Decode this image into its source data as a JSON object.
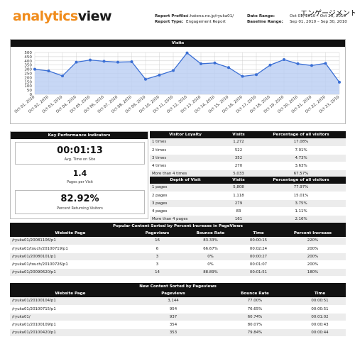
{
  "logo": {
    "part1": "analytics",
    "part2": "view"
  },
  "report": {
    "profile_label": "Report Profile:",
    "profile_value": "d.hatena.ne.jp/ryuka01/",
    "type_label": "Report Type:",
    "type_value": "Engagement Report",
    "date_range_label": "Date Range:",
    "date_range_value": "Oct 01, 2010 – Oct 23, 2010",
    "baseline_label": "Baseline Range:",
    "baseline_value": "Sep 01, 2010 – Sep 30, 2010",
    "title_jp": "エンゲージメント"
  },
  "visits_chart": {
    "title": "Visits",
    "colors": {
      "line": "#3b6fd4",
      "fill": "#b9cdf2",
      "grid": "#c8c8c8"
    }
  },
  "chart_data": {
    "type": "area",
    "title": "Visits",
    "ylim": [
      0,
      500
    ],
    "yticks": [
      0,
      50,
      100,
      150,
      200,
      250,
      300,
      350,
      400,
      450,
      500
    ],
    "grid": true,
    "x": [
      "Oct 01, 2010",
      "Oct 02, 2010",
      "Oct 03, 2010",
      "Oct 04, 2010",
      "Oct 05, 2010",
      "Oct 06, 2010",
      "Oct 07, 2010",
      "Oct 08, 2010",
      "Oct 09, 2010",
      "Oct 10, 2010",
      "Oct 11, 2010",
      "Oct 12, 2010",
      "Oct 13, 2010",
      "Oct 14, 2010",
      "Oct 15, 2010",
      "Oct 16, 2010",
      "Oct 17, 2010",
      "Oct 18, 2010",
      "Oct 19, 2010",
      "Oct 20, 2010",
      "Oct 21, 2010",
      "Oct 22, 2010",
      "Oct 23, 2010"
    ],
    "series": [
      {
        "values": [
          300,
          280,
          220,
          385,
          410,
          395,
          385,
          390,
          180,
          230,
          285,
          495,
          365,
          375,
          320,
          215,
          235,
          350,
          415,
          365,
          345,
          370,
          145
        ]
      }
    ]
  },
  "kpi": {
    "title": "Key Performance Indicators",
    "time_on_site": "00:01:13",
    "time_on_site_label": "Avg. Time on Site",
    "pages_per_visit": "1.4",
    "pages_per_visit_label": "Pages per Visit",
    "returning_pct": "82.92%",
    "returning_label": "Percent Returning Visitors"
  },
  "loyalty": {
    "headers": [
      "Visitor Loyalty",
      "Visits",
      "Percentage of all visitors"
    ],
    "rows": [
      [
        "1 times",
        "1,272",
        "17.08%"
      ],
      [
        "2 times",
        "522",
        "7.01%"
      ],
      [
        "3 times",
        "352",
        "4.73%"
      ],
      [
        "4 times",
        "270",
        "3.63%"
      ],
      [
        "More than 4 times",
        "5,033",
        "67.57%"
      ]
    ]
  },
  "depth": {
    "headers": [
      "Depth of Visit",
      "Visits",
      "Percentage of all visitors"
    ],
    "rows": [
      [
        "1 pages",
        "5,808",
        "77.97%"
      ],
      [
        "2 pages",
        "1,118",
        "15.01%"
      ],
      [
        "3 pages",
        "279",
        "3.75%"
      ],
      [
        "4 pages",
        "83",
        "1.11%"
      ],
      [
        "More than 4 pages",
        "161",
        "2.16%"
      ]
    ]
  },
  "popular": {
    "title": "Popular Content Sorted by Percent Increase in PageViews",
    "headers": [
      "Website Page",
      "Pageviews",
      "Bounce Rate",
      "Time",
      "Percent Increase"
    ],
    "rows": [
      [
        "/ryuka01/20081106/p1",
        "16",
        "83.33%",
        "00:00:15",
        "220%"
      ],
      [
        "/ryuka01/touch/20100719/p1",
        "6",
        "66.67%",
        "00:02:24",
        "200%"
      ],
      [
        "/ryuka01/20080101/p1",
        "3",
        "0%",
        "00:00:27",
        "200%"
      ],
      [
        "/ryuka01/touch/20100726/p1",
        "3",
        "0%",
        "00:01:07",
        "200%"
      ],
      [
        "/ryuka01/20090620/p1",
        "14",
        "88.89%",
        "00:01:51",
        "180%"
      ]
    ]
  },
  "newcontent": {
    "title": "New Content Sorted by Pageviews",
    "headers": [
      "Website Page",
      "Pageviews",
      "Bounce Rate",
      "Time"
    ],
    "rows": [
      [
        "/ryuka01/20100104/p1",
        "3,144",
        "77.00%",
        "00:00:51"
      ],
      [
        "/ryuka01/20100715/p1",
        "954",
        "76.65%",
        "00:00:51"
      ],
      [
        "/ryuka01/",
        "937",
        "60.74%",
        "00:01:02"
      ],
      [
        "/ryuka01/20100109/p1",
        "354",
        "80.07%",
        "00:00:43"
      ],
      [
        "/ryuka01/20100420/p1",
        "353",
        "79.84%",
        "00:00:44"
      ]
    ]
  }
}
